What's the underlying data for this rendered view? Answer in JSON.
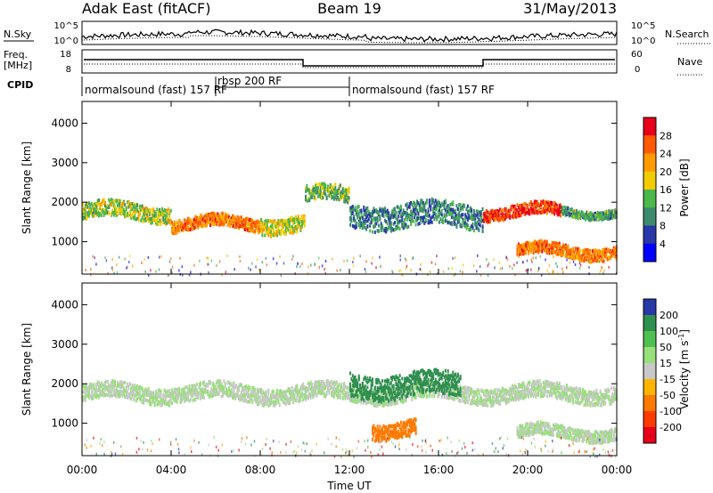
{
  "header": {
    "station": "Adak East (fitACF)",
    "beam": "Beam 19",
    "date": "31/May/2013"
  },
  "noise_panel": {
    "left_label": "N.Sky",
    "left_ticks": [
      "10^5",
      "10^0"
    ],
    "right_label": "N.Search",
    "right_ticks": [
      "10^5",
      "10^0"
    ]
  },
  "freq_panel": {
    "left_label_1": "Freq.",
    "left_label_2": "[MHz]",
    "left_ticks": [
      "18",
      "8"
    ],
    "right_label": "Nave",
    "right_ticks": [
      "60",
      "0"
    ]
  },
  "cpid_panel": {
    "label": "CPID",
    "segments": [
      "normalsound (fast) 157 RF",
      "rbsp 200 RF",
      "normalsound (fast) 157 RF"
    ]
  },
  "x_axis": {
    "title": "Time UT",
    "ticks": [
      "00:00",
      "04:00",
      "08:00",
      "12:00",
      "16:00",
      "20:00",
      "00:00"
    ]
  },
  "chart_data": [
    {
      "type": "heatmap",
      "name": "power",
      "ylabel": "Slant Range [km]",
      "yticks": [
        1000,
        2000,
        3000,
        4000
      ],
      "ylim": [
        180,
        4550
      ],
      "xlim_hours": [
        0,
        24
      ],
      "colorbar_label": "Power [dB]",
      "colorbar_ticks": [
        28,
        24,
        20,
        16,
        12,
        8,
        4
      ],
      "colorbar_colors": [
        "#e8001b",
        "#ff5a00",
        "#ff9a00",
        "#f2cc00",
        "#4bb84b",
        "#3c8a6e",
        "#2838a8",
        "#0000ff"
      ],
      "echo_bands": [
        {
          "x_start": 0,
          "x_end": 4.0,
          "y_center": 1800,
          "y_spread": 200,
          "level": 16
        },
        {
          "x_start": 4.0,
          "x_end": 8.0,
          "y_center": 1500,
          "y_spread": 150,
          "level": 24
        },
        {
          "x_start": 8.0,
          "x_end": 10.0,
          "y_center": 1500,
          "y_spread": 200,
          "level": 18
        },
        {
          "x_start": 10.0,
          "x_end": 12.0,
          "y_center": 2200,
          "y_spread": 200,
          "level": 14
        },
        {
          "x_start": 12.0,
          "x_end": 18.0,
          "y_center": 1700,
          "y_spread": 300,
          "level": 10
        },
        {
          "x_start": 18.0,
          "x_end": 21.5,
          "y_center": 1800,
          "y_spread": 150,
          "level": 28
        },
        {
          "x_start": 21.5,
          "x_end": 24.0,
          "y_center": 1800,
          "y_spread": 100,
          "level": 12
        },
        {
          "x_start": 19.5,
          "x_end": 24.0,
          "y_center": 800,
          "y_spread": 150,
          "level": 24
        }
      ]
    },
    {
      "type": "heatmap",
      "name": "velocity",
      "ylabel": "Slant Range [km]",
      "yticks": [
        1000,
        2000,
        3000,
        4000
      ],
      "ylim": [
        180,
        4550
      ],
      "xlim_hours": [
        0,
        24
      ],
      "colorbar_label": "Velocity [m s^-1]",
      "colorbar_ticks": [
        200,
        100,
        50,
        15,
        -15,
        -50,
        -100,
        -200
      ],
      "colorbar_colors": [
        "#2838a8",
        "#2f8f4f",
        "#4fc04f",
        "#98e07a",
        "#c8c8c8",
        "#ffb400",
        "#ff7a00",
        "#ff3a00",
        "#e8001b"
      ],
      "echo_bands": [
        {
          "x_start": 0,
          "x_end": 24.0,
          "y_center": 1800,
          "y_spread": 200,
          "level": 0
        },
        {
          "x_start": 12.0,
          "x_end": 17.0,
          "y_center": 2000,
          "y_spread": 300,
          "level": 60
        },
        {
          "x_start": 13.0,
          "x_end": 15.0,
          "y_center": 900,
          "y_spread": 200,
          "level": -60
        },
        {
          "x_start": 19.5,
          "x_end": 24.0,
          "y_center": 800,
          "y_spread": 150,
          "level": 0
        }
      ]
    }
  ]
}
